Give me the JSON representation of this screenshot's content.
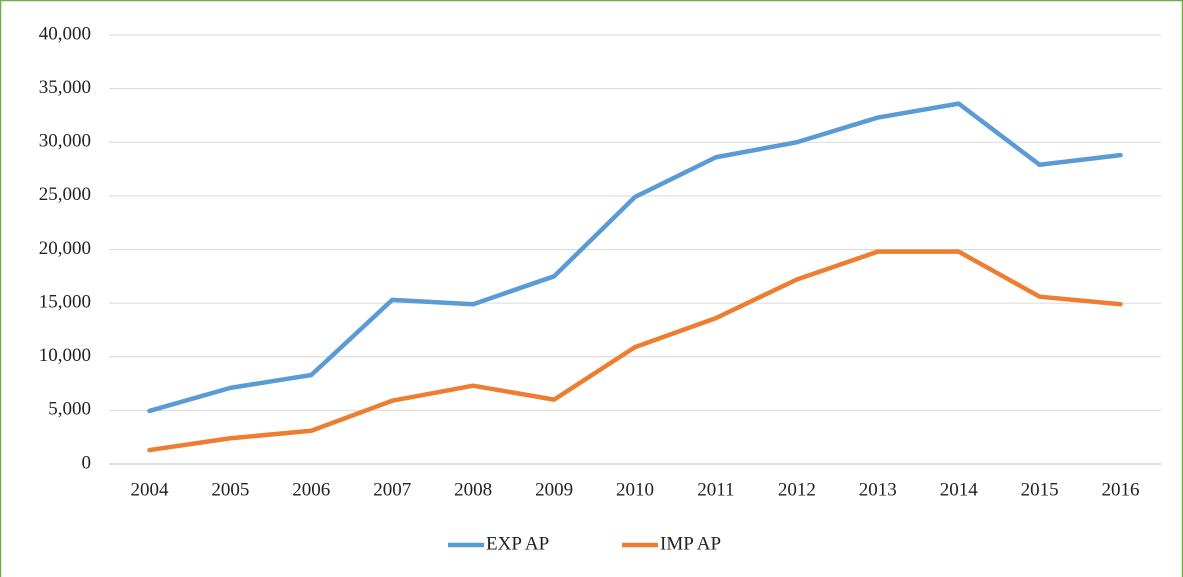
{
  "chart_data": {
    "type": "line",
    "categories": [
      "2004",
      "2005",
      "2006",
      "2007",
      "2008",
      "2009",
      "2010",
      "2011",
      "2012",
      "2013",
      "2014",
      "2015",
      "2016"
    ],
    "series": [
      {
        "name": "EXP AP",
        "color": "#5b9bd5",
        "values": [
          4950,
          7100,
          8300,
          15300,
          14900,
          17500,
          24900,
          28600,
          30000,
          32300,
          33600,
          27900,
          28800
        ]
      },
      {
        "name": "IMP AP",
        "color": "#ed7d31",
        "values": [
          1300,
          2400,
          3100,
          5900,
          7300,
          6000,
          10900,
          13600,
          17200,
          19800,
          19800,
          15600,
          14900
        ]
      }
    ],
    "ylim": [
      0,
      40000
    ],
    "yticks": [
      0,
      {
        "value": 5000,
        "label": "5,000"
      },
      {
        "value": 10000,
        "label": "10,000"
      },
      {
        "value": 15000,
        "label": "15,000"
      },
      {
        "value": 20000,
        "label": "20,000"
      },
      {
        "value": 25000,
        "label": "25,000"
      },
      {
        "value": 30000,
        "label": "30,000"
      },
      {
        "value": 35000,
        "label": "35,000"
      },
      {
        "value": 40000,
        "label": "40,000"
      }
    ],
    "grid": true,
    "legend": "bottom"
  }
}
